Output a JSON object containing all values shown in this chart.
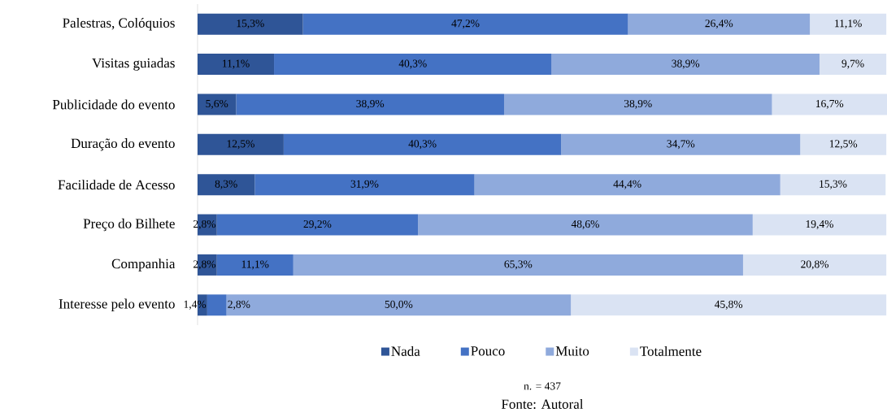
{
  "chart_data": {
    "type": "bar",
    "orientation": "horizontal",
    "stacked": true,
    "categories": [
      "Palestras, Colóquios",
      "Visitas guiadas",
      "Publicidade do evento",
      "Duração do evento",
      "Facilidade de Acesso",
      "Preço do Bilhete",
      "Companhia",
      "Interesse pelo evento"
    ],
    "series": [
      {
        "name": "Nada",
        "color": "#2f5597",
        "values": [
          15.3,
          11.1,
          5.6,
          12.5,
          8.3,
          2.8,
          2.8,
          1.4
        ],
        "value_labels": [
          "15,3%",
          "11,1%",
          "5,6%",
          "12,5%",
          "8,3%",
          "2,8%",
          "2,8%",
          "1,4%"
        ]
      },
      {
        "name": "Pouco",
        "color": "#4472c4",
        "values": [
          47.2,
          40.3,
          38.9,
          40.3,
          31.9,
          29.2,
          11.1,
          2.8
        ],
        "value_labels": [
          "47,2%",
          "40,3%",
          "38,9%",
          "40,3%",
          "31,9%",
          "29,2%",
          "11,1%",
          "2,8%"
        ]
      },
      {
        "name": "Muito",
        "color": "#8faadc",
        "values": [
          26.4,
          38.9,
          38.9,
          34.7,
          44.4,
          48.6,
          65.3,
          50.0
        ],
        "value_labels": [
          "26,4%",
          "38,9%",
          "38,9%",
          "34,7%",
          "44,4%",
          "48,6%",
          "65,3%",
          "50,0%"
        ]
      },
      {
        "name": "Totalmente",
        "color": "#dae3f3",
        "values": [
          11.1,
          9.7,
          16.7,
          12.5,
          15.3,
          19.4,
          20.8,
          45.8
        ],
        "value_labels": [
          "11,1%",
          "9,7%",
          "16,7%",
          "12,5%",
          "15,3%",
          "19,4%",
          "20,8%",
          "45,8%"
        ]
      }
    ],
    "legend": "bottom",
    "tick_labels": "y",
    "annotations": [
      "n. = 437",
      "Fonte: Autoral"
    ]
  }
}
